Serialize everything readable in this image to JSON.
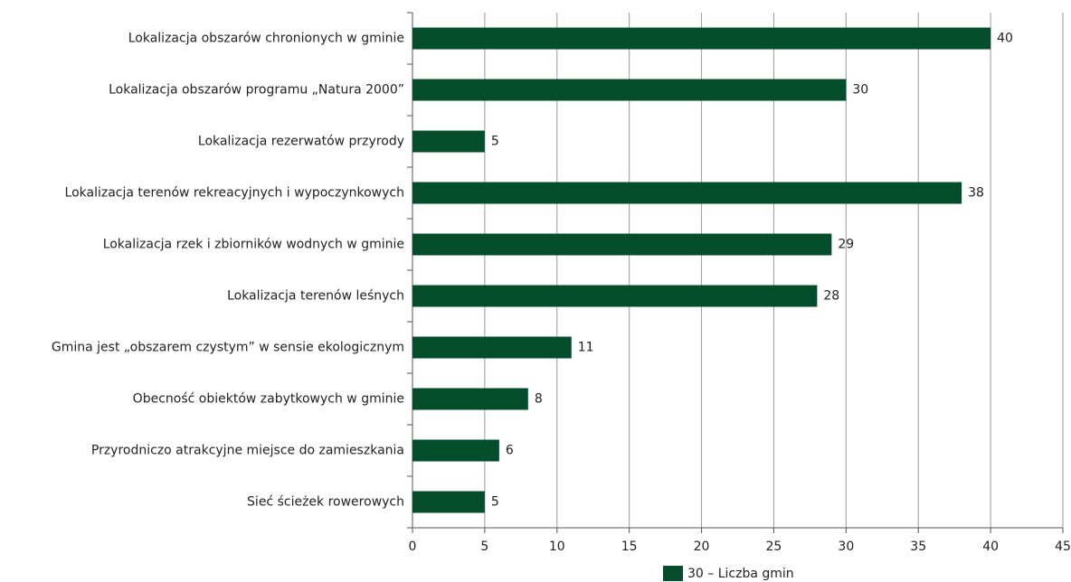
{
  "chart_data": {
    "type": "bar",
    "orientation": "horizontal",
    "categories": [
      "Lokalizacja obszarów chronionych w gminie",
      "Lokalizacja obszarów programu „Natura 2000”",
      "Lokalizacja rezerwatów przyrody",
      "Lokalizacja terenów rekreacyjnych i wypoczynkowych",
      "Lokalizacja rzek i zbiorników wodnych w gminie",
      "Lokalizacja terenów leśnych",
      "Gmina jest „obszarem czystym” w sensie ekologicznym",
      "Obecność obiektów zabytkowych w gminie",
      "Przyrodniczo atrakcyjne miejsce do zamieszkania",
      "Sieć ścieżek rowerowych"
    ],
    "series": [
      {
        "name": "30 – Liczba gmin",
        "color": "#034d2b",
        "values": [
          40,
          30,
          5,
          38,
          29,
          28,
          11,
          8,
          6,
          5
        ]
      }
    ],
    "xlim": [
      0,
      45
    ],
    "xticks": [
      0,
      5,
      10,
      15,
      20,
      25,
      30,
      35,
      40,
      45
    ],
    "grid": true,
    "legend": "bottom"
  }
}
